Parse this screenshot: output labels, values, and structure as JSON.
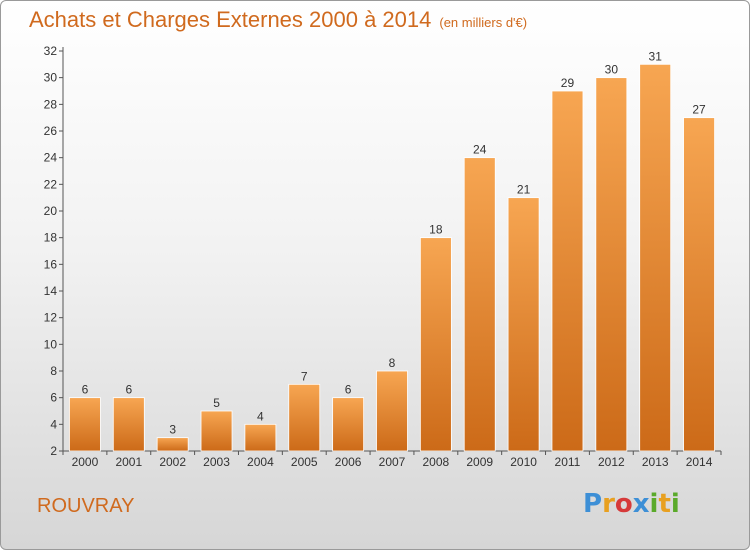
{
  "header": {
    "title": "Achats et Charges Externes 2000 à 2014",
    "unit": "(en milliers d'€)"
  },
  "footer": {
    "commune": "ROUVRAY",
    "logo": {
      "letters": [
        "P",
        "r",
        "o",
        "x",
        "i",
        "t",
        "i"
      ],
      "colors": [
        "#3d8fd6",
        "#e8a020",
        "#d63a3a",
        "#3d8fd6",
        "#5aaa2a",
        "#e8a020",
        "#5aaa2a"
      ]
    }
  },
  "colors": {
    "bar_top": "#f7a652",
    "bar_bottom": "#cc6a18",
    "bar_edge": "#ffffff",
    "axis": "#555555"
  },
  "chart_data": {
    "type": "bar",
    "title": "Achats et Charges Externes 2000 à 2014",
    "subtitle": "(en milliers d'€)",
    "categories": [
      "2000",
      "2001",
      "2002",
      "2003",
      "2004",
      "2005",
      "2006",
      "2007",
      "2008",
      "2009",
      "2010",
      "2011",
      "2012",
      "2013",
      "2014"
    ],
    "values": [
      6,
      6,
      3,
      5,
      4,
      7,
      6,
      8,
      18,
      24,
      21,
      29,
      30,
      31,
      27
    ],
    "ylim": [
      2,
      32
    ],
    "yticks": [
      2,
      4,
      6,
      8,
      10,
      12,
      14,
      16,
      18,
      20,
      22,
      24,
      26,
      28,
      30,
      32
    ],
    "xlabel": "",
    "ylabel": "",
    "grid": false,
    "data_labels": true
  }
}
